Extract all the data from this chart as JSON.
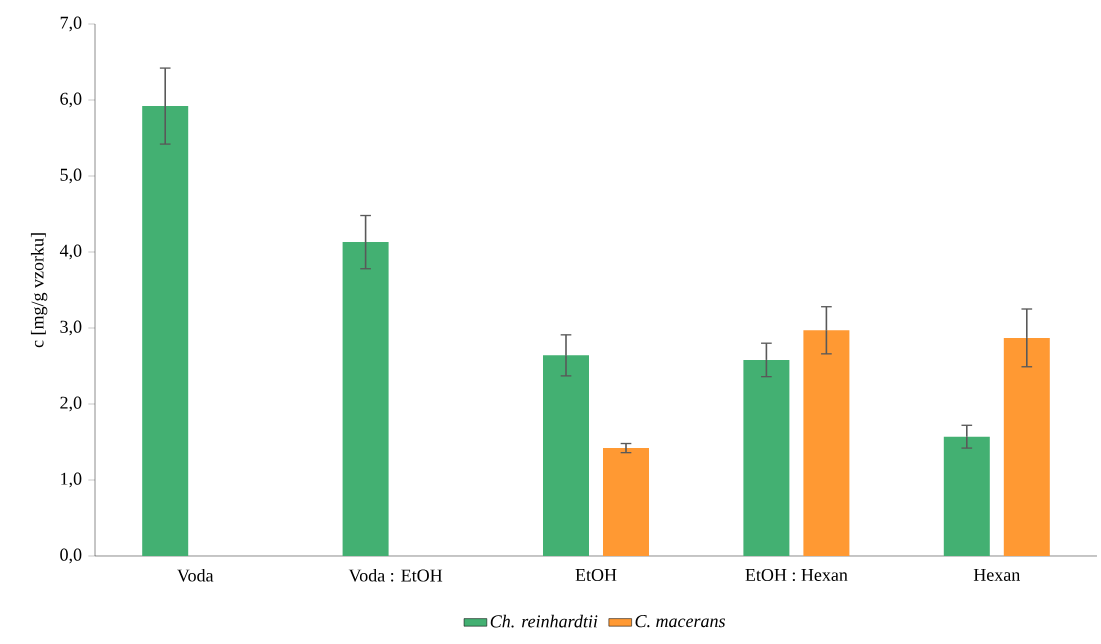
{
  "chart_data": {
    "type": "bar",
    "ylabel": "c [mg/g vzorku]",
    "categories": [
      "Voda",
      "Voda : EtOH",
      "EtOH",
      "EtOH : Hexan",
      "Hexan"
    ],
    "series": [
      {
        "name": "Ch. reinhardtii",
        "color": "#43b072",
        "values": [
          5.92,
          4.13,
          2.64,
          2.58,
          1.57
        ],
        "errors": [
          0.5,
          0.35,
          0.27,
          0.22,
          0.15
        ]
      },
      {
        "name": "C. macerans",
        "color": "#ff9933",
        "values": [
          null,
          null,
          1.42,
          2.97,
          2.87
        ],
        "errors": [
          null,
          null,
          0.06,
          0.31,
          0.38
        ]
      }
    ],
    "ylim": [
      0,
      7
    ],
    "yticks": [
      {
        "value": 0,
        "label": "0,0"
      },
      {
        "value": 1,
        "label": "1,0"
      },
      {
        "value": 2,
        "label": "2,0"
      },
      {
        "value": 3,
        "label": "3,0"
      },
      {
        "value": 4,
        "label": "4,0"
      },
      {
        "value": 5,
        "label": "5,0"
      },
      {
        "value": 6,
        "label": "6,0"
      },
      {
        "value": 7,
        "label": "7,0"
      }
    ],
    "grid": false,
    "legend": "bottom"
  }
}
